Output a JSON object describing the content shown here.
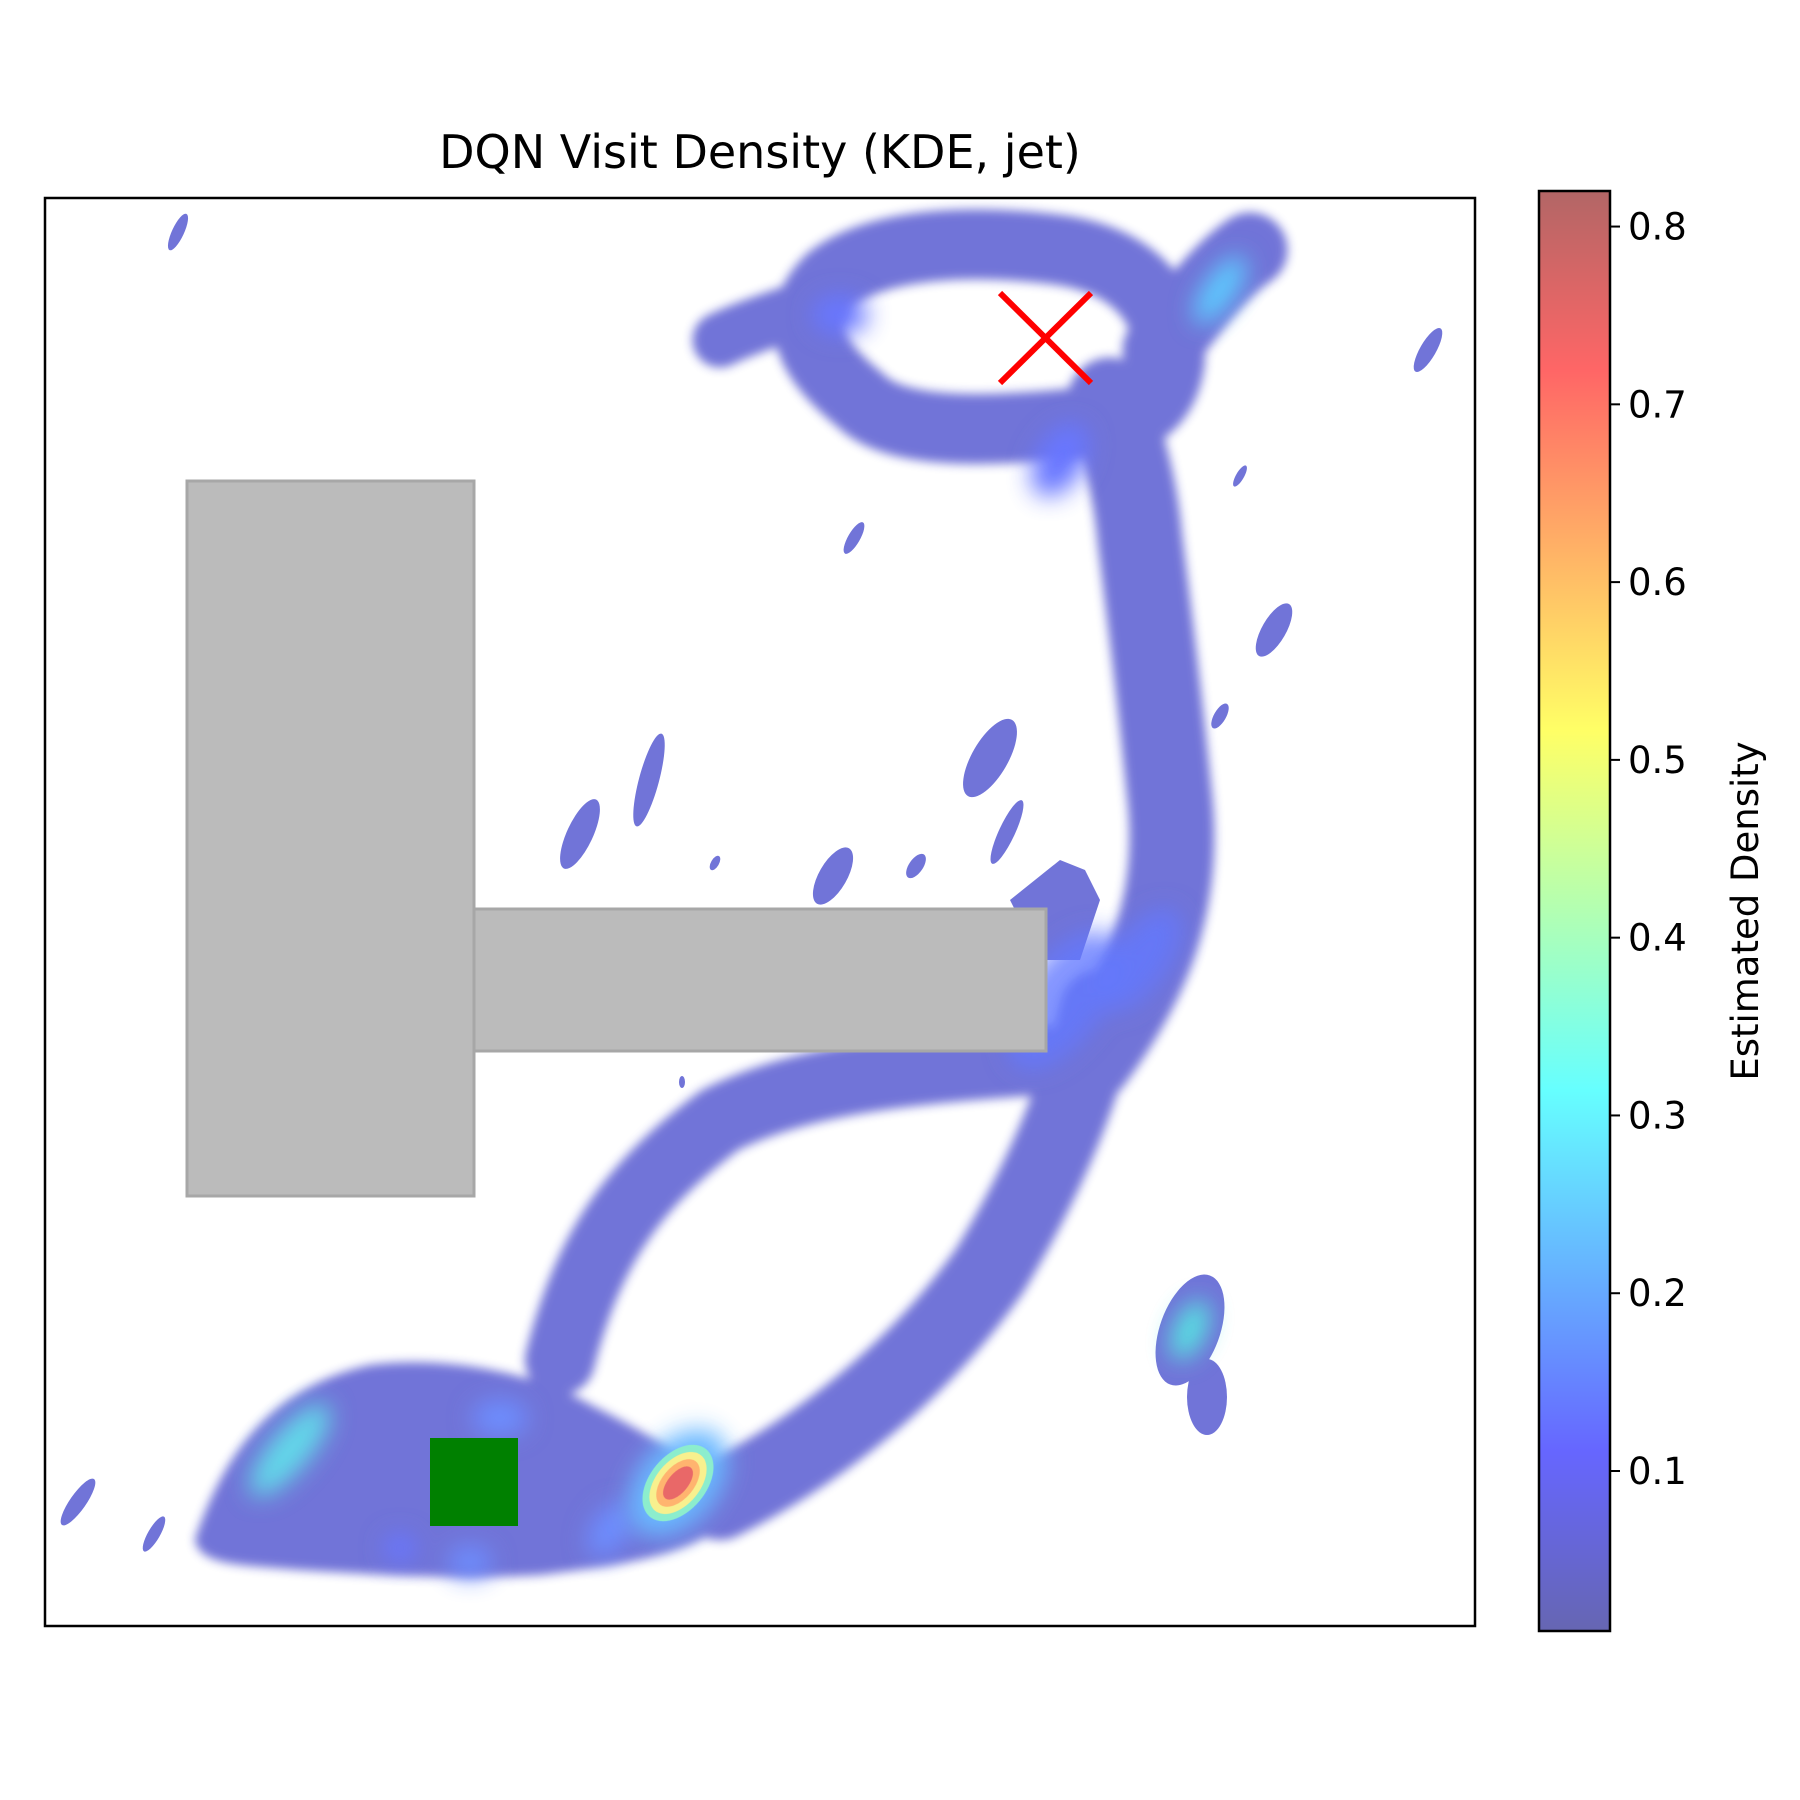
{
  "chart_data": {
    "type": "heatmap",
    "title": "DQN Visit Density (KDE, jet)",
    "colormap": "jet",
    "colormap_alpha": 0.6,
    "axes_ticks_visible": false,
    "xlim": [
      0,
      1
    ],
    "ylim": [
      0,
      1
    ],
    "colorbar": {
      "label": "Estimated Density",
      "range": [
        0.01,
        0.82
      ],
      "ticks": [
        0.1,
        0.2,
        0.3,
        0.4,
        0.5,
        0.6,
        0.7,
        0.8
      ],
      "tick_labels": [
        "0.1",
        "0.2",
        "0.3",
        "0.4",
        "0.5",
        "0.6",
        "0.7",
        "0.8"
      ]
    },
    "obstacles": [
      {
        "name": "vertical-block",
        "x": [
          0.1,
          0.3
        ],
        "y": [
          0.3,
          0.8
        ],
        "color": "#bbbbbb"
      },
      {
        "name": "horizontal-arm",
        "x": [
          0.3,
          0.7
        ],
        "y": [
          0.4,
          0.5
        ],
        "color": "#bbbbbb"
      }
    ],
    "start": {
      "marker": "square",
      "color": "#008000",
      "x": 0.3,
      "y": 0.1
    },
    "goal": {
      "marker": "x",
      "color": "#ff0000",
      "x": 0.7,
      "y": 0.9
    },
    "density_peaks": [
      {
        "x": 0.44,
        "y": 0.09,
        "value": 0.76
      },
      {
        "x": 0.18,
        "y": 0.13,
        "value": 0.26
      },
      {
        "x": 0.8,
        "y": 0.21,
        "value": 0.28
      },
      {
        "x": 0.83,
        "y": 0.93,
        "value": 0.22
      },
      {
        "x": 0.76,
        "y": 0.44,
        "value": 0.13
      },
      {
        "x": 0.7,
        "y": 0.38,
        "value": 0.12
      },
      {
        "x": 0.56,
        "y": 0.89,
        "value": 0.11
      },
      {
        "x": 0.33,
        "y": 0.15,
        "value": 0.15
      },
      {
        "x": 0.29,
        "y": 0.06,
        "value": 0.13
      }
    ]
  }
}
